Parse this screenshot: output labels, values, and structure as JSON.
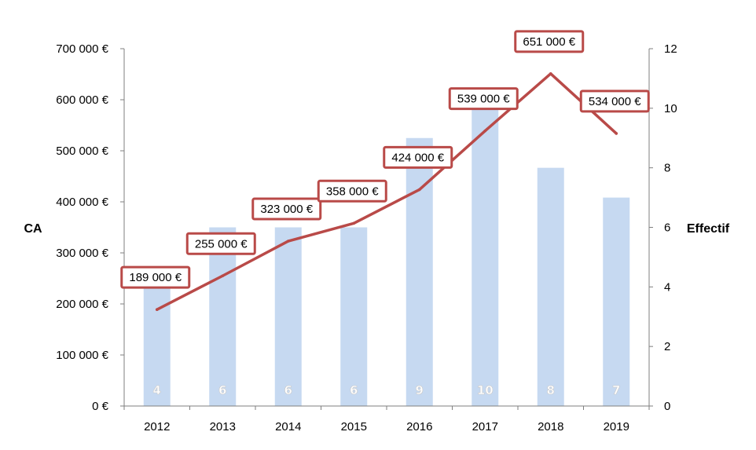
{
  "chart_data": {
    "type": "bar",
    "categories": [
      "2012",
      "2013",
      "2014",
      "2015",
      "2016",
      "2017",
      "2018",
      "2019"
    ],
    "xlabel": "",
    "ylabel": "CA",
    "y2label": "Effectif",
    "ylim": [
      0,
      700000
    ],
    "y2lim": [
      0,
      12
    ],
    "y_ticks": [
      "0 €",
      "100 000 €",
      "200 000 €",
      "300 000 €",
      "400 000 €",
      "500 000 €",
      "600 000 €",
      "700 000 €"
    ],
    "y2_ticks": [
      "0",
      "2",
      "4",
      "6",
      "8",
      "10",
      "12"
    ],
    "grid": false,
    "series": [
      {
        "type": "bar",
        "axis": "right",
        "values": [
          4,
          6,
          6,
          6,
          9,
          10,
          8,
          7
        ],
        "labels": [
          "4",
          "6",
          "6",
          "6",
          "9",
          "10",
          "8",
          "7"
        ],
        "color": "#c6d9f1"
      },
      {
        "type": "line",
        "axis": "left",
        "values": [
          189000,
          255000,
          323000,
          358000,
          424000,
          539000,
          651000,
          534000
        ],
        "labels": [
          "189 000 €",
          "255 000 €",
          "323 000 €",
          "358 000 €",
          "424 000 €",
          "539 000 €",
          "651 000 €",
          "534 000 €"
        ],
        "color": "#b94a48"
      }
    ]
  }
}
